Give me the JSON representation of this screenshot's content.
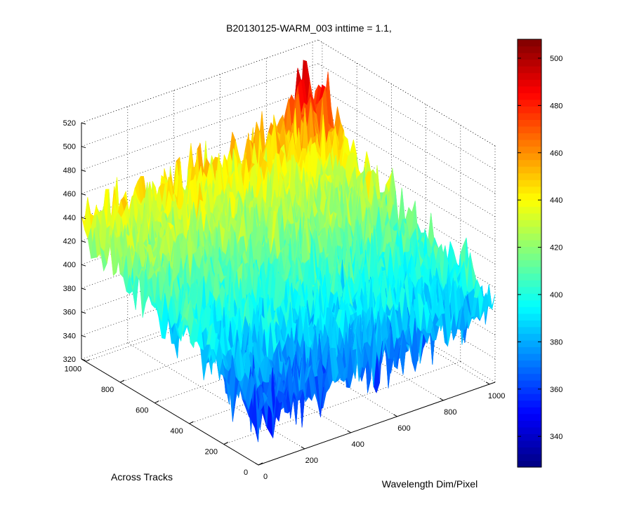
{
  "window": {
    "title": "B20130125-WARM_003 inttime = 1.1,"
  },
  "chart_data": {
    "type": "surface",
    "title": "B20130125-WARM_003 inttime = 1.1,",
    "xlabel": "Wavelength Dim/Pixel",
    "ylabel": "Across Tracks",
    "zlabel": "",
    "xlim": [
      0,
      1024
    ],
    "ylim": [
      0,
      1024
    ],
    "zlim": [
      320,
      520
    ],
    "x_ticks": [
      "0",
      "200",
      "400",
      "600",
      "800",
      "1000"
    ],
    "y_ticks": [
      "0",
      "200",
      "400",
      "600",
      "800",
      "1000"
    ],
    "z_ticks": [
      "320",
      "340",
      "360",
      "380",
      "400",
      "420",
      "440",
      "460",
      "480",
      "500",
      "520"
    ],
    "colormap": "jet",
    "color_range": [
      327,
      508
    ],
    "colorbar_ticks": [
      "340",
      "360",
      "380",
      "400",
      "420",
      "440",
      "460",
      "480",
      "500"
    ],
    "grid": true,
    "surface_corner_means": [
      {
        "x": 0,
        "y": 0,
        "z": 362
      },
      {
        "x": 1024,
        "y": 0,
        "z": 385
      },
      {
        "x": 0,
        "y": 1024,
        "z": 435
      },
      {
        "x": 1024,
        "y": 1024,
        "z": 448
      }
    ],
    "noise_amplitude": 28,
    "description_values": {
      "min_observed": 327,
      "max_observed": 508
    }
  }
}
